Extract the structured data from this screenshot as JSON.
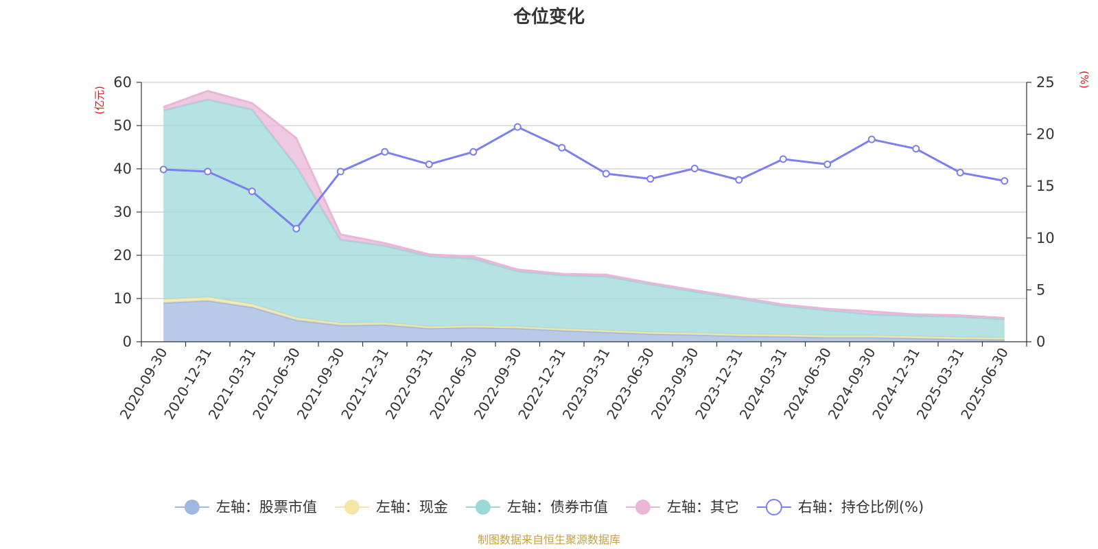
{
  "chart_data": {
    "type": "area",
    "title": "仓位变化",
    "left_axis": {
      "unit": "(亿元)",
      "ylim": [
        0,
        60
      ],
      "ticks": [
        0,
        10,
        20,
        30,
        40,
        50,
        60
      ]
    },
    "right_axis": {
      "unit": "(%)",
      "ylim": [
        0,
        25
      ],
      "ticks": [
        0,
        5,
        10,
        15,
        20,
        25
      ]
    },
    "categories": [
      "2020-09-30",
      "2020-12-31",
      "2021-03-31",
      "2021-06-30",
      "2021-09-30",
      "2021-12-31",
      "2022-03-31",
      "2022-06-30",
      "2022-09-30",
      "2022-12-31",
      "2023-03-31",
      "2023-06-30",
      "2023-09-30",
      "2023-12-31",
      "2024-03-31",
      "2024-06-30",
      "2024-09-30",
      "2024-12-31",
      "2025-03-31",
      "2025-06-30"
    ],
    "series": [
      {
        "name": "左轴：股票市值",
        "axis": "left",
        "kind": "area",
        "color": "#a0b8e0",
        "values": [
          9.0,
          9.5,
          8.0,
          5.0,
          3.8,
          3.9,
          3.1,
          3.3,
          3.1,
          2.6,
          2.2,
          1.8,
          1.6,
          1.3,
          1.2,
          1.0,
          1.0,
          0.8,
          0.6,
          0.5
        ]
      },
      {
        "name": "左轴：现金",
        "axis": "left",
        "kind": "area",
        "color": "#f5e6a8",
        "values": [
          0.8,
          0.8,
          0.7,
          0.6,
          0.5,
          0.5,
          0.4,
          0.4,
          0.4,
          0.4,
          0.4,
          0.4,
          0.4,
          0.4,
          0.4,
          0.4,
          0.4,
          0.4,
          0.4,
          0.4
        ]
      },
      {
        "name": "左轴：债券市值",
        "axis": "left",
        "kind": "area",
        "color": "#9cd8d8",
        "values": [
          43.7,
          45.7,
          45.0,
          35.0,
          19.3,
          17.8,
          16.3,
          15.5,
          12.8,
          12.4,
          12.5,
          11.1,
          9.6,
          8.3,
          6.7,
          5.9,
          4.9,
          4.8,
          4.8,
          4.3
        ]
      },
      {
        "name": "左轴：其它",
        "axis": "left",
        "kind": "area",
        "color": "#eab6d8",
        "values": [
          0.8,
          2.0,
          1.5,
          6.5,
          1.2,
          0.6,
          0.4,
          0.5,
          0.4,
          0.3,
          0.4,
          0.3,
          0.3,
          0.3,
          0.3,
          0.3,
          0.7,
          0.3,
          0.3,
          0.3
        ]
      },
      {
        "name": "右轴：持仓比例(%)",
        "axis": "right",
        "kind": "line",
        "color": "#7b7ff0",
        "values": [
          16.6,
          16.4,
          14.5,
          10.9,
          16.4,
          18.3,
          17.1,
          18.3,
          20.7,
          18.7,
          16.2,
          15.7,
          16.7,
          15.6,
          17.6,
          17.1,
          19.5,
          18.6,
          16.3,
          15.5
        ]
      }
    ],
    "grid": true,
    "legend_position": "bottom"
  },
  "source_note": "制图数据来自恒生聚源数据库",
  "colors": {
    "unit_label": "#ee1111",
    "source_note": "#c8a040",
    "grid": "#cccccc",
    "axis": "#333333"
  }
}
